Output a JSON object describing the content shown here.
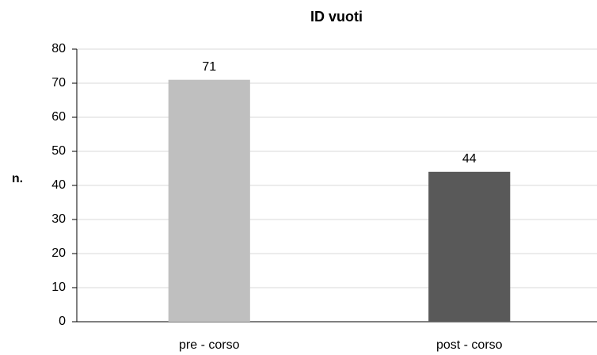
{
  "chart_data": {
    "type": "bar",
    "title": "ID vuoti",
    "y_label": "n.",
    "categories": [
      "pre - corso",
      "post - corso"
    ],
    "values": [
      71,
      44
    ],
    "colors": [
      "#bfbfbf",
      "#595959"
    ],
    "ylim": [
      0,
      80
    ],
    "yticks": [
      0,
      10,
      20,
      30,
      40,
      50,
      60,
      70,
      80
    ],
    "grid": true
  }
}
